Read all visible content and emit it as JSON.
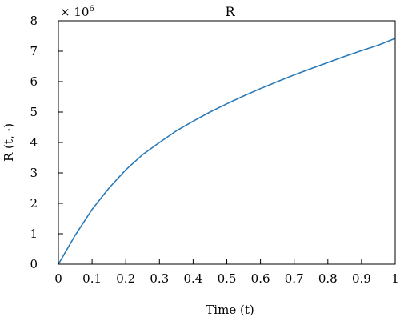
{
  "chart_data": {
    "type": "line",
    "title": "R",
    "xlabel": "Time (t)",
    "ylabel": "R (t, ·)",
    "y_multiplier_base": "× 10",
    "y_multiplier_exponent": "6",
    "xlim": [
      0,
      1
    ],
    "ylim": [
      0,
      8
    ],
    "x_ticks": [
      0,
      0.1,
      0.2,
      0.3,
      0.4,
      0.5,
      0.6,
      0.7,
      0.8,
      0.9,
      1
    ],
    "x_tick_labels": [
      "0",
      "0.1",
      "0.2",
      "0.3",
      "0.4",
      "0.5",
      "0.6",
      "0.7",
      "0.8",
      "0.9",
      "1"
    ],
    "y_ticks": [
      0,
      1,
      2,
      3,
      4,
      5,
      6,
      7,
      8
    ],
    "y_tick_labels": [
      "0",
      "1",
      "2",
      "3",
      "4",
      "5",
      "6",
      "7",
      "8"
    ],
    "grid": false,
    "line_color": "#2a7ab9",
    "series": [
      {
        "x": [
          0,
          0.05,
          0.1,
          0.15,
          0.2,
          0.25,
          0.3,
          0.35,
          0.4,
          0.45,
          0.5,
          0.55,
          0.6,
          0.65,
          0.7,
          0.75,
          0.8,
          0.85,
          0.9,
          0.95,
          1.0
        ],
        "values": [
          0,
          0.95,
          1.8,
          2.5,
          3.1,
          3.6,
          4.0,
          4.38,
          4.7,
          5.0,
          5.27,
          5.53,
          5.77,
          6.0,
          6.22,
          6.43,
          6.63,
          6.83,
          7.02,
          7.2,
          7.42
        ]
      }
    ]
  }
}
